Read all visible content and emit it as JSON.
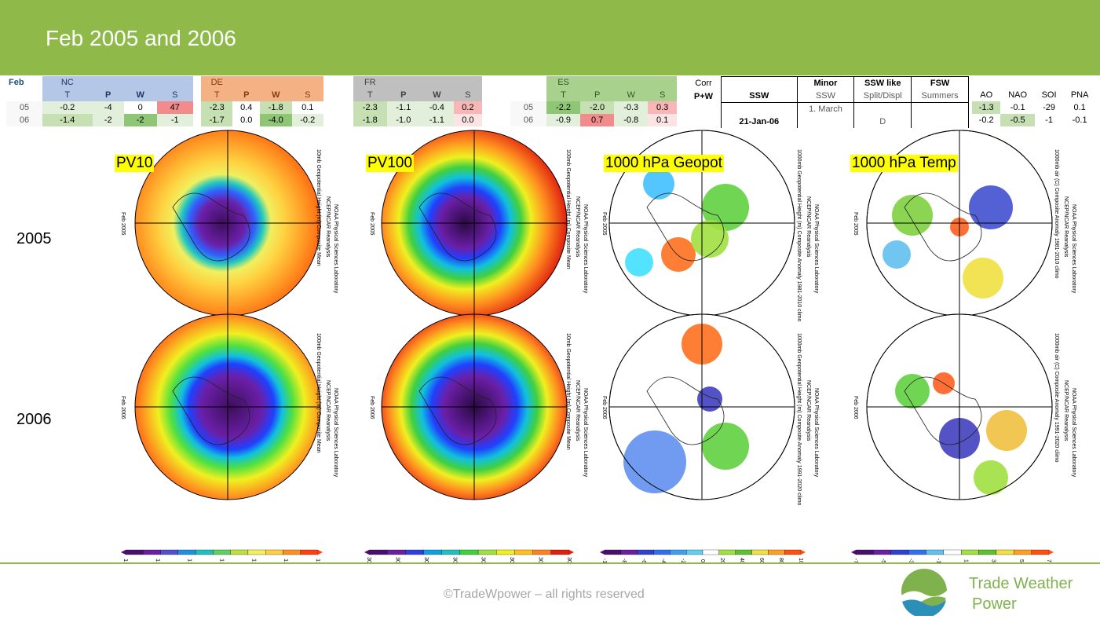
{
  "title": "Feb 2005 and 2006",
  "footer": {
    "copyright": "©TradeWpower – all rights reserved",
    "brand_line1": "Trade Weather",
    "brand_line2": "Power"
  },
  "colors": {
    "header": "#8fba4a",
    "brand": "#7fb24d"
  },
  "table": {
    "feb_label": "Feb",
    "rows": [
      "05",
      "06"
    ],
    "regions": [
      {
        "name": "NC",
        "cols": [
          "T",
          "P",
          "W",
          "S"
        ],
        "r05": [
          "-0.2",
          "-4",
          "0",
          "47"
        ],
        "r06": [
          "-1.4",
          "-2",
          "-2",
          "-1"
        ]
      },
      {
        "name": "DE",
        "cols": [
          "T",
          "P",
          "W",
          "S"
        ],
        "r05": [
          "-2.3",
          "0.4",
          "-1.8",
          "0.1"
        ],
        "r06": [
          "-1.7",
          "0.0",
          "-4.0",
          "-0.2"
        ]
      },
      {
        "name": "FR",
        "cols": [
          "T",
          "P",
          "W",
          "S"
        ],
        "r05": [
          "-2.3",
          "-1.1",
          "-0.4",
          "0.2"
        ],
        "r06": [
          "-1.8",
          "-1.0",
          "-1.1",
          "0.0"
        ]
      },
      {
        "name": "ES",
        "cols": [
          "T",
          "P",
          "W",
          "S"
        ],
        "r05": [
          "-2.2",
          "-2.0",
          "-0.3",
          "0.3"
        ],
        "r06": [
          "-0.9",
          "0.7",
          "-0.8",
          "0.1"
        ]
      }
    ],
    "corr": {
      "line1": "Corr",
      "line2": "P+W"
    },
    "ssw": {
      "headers_top": [
        "",
        "Minor",
        "SSW like",
        "FSW"
      ],
      "headers_bottom": [
        "SSW",
        "SSW",
        "Split/Displ",
        "Summers"
      ],
      "r05": [
        "",
        "1. March",
        "",
        ""
      ],
      "r06": [
        "21-Jan-06",
        "",
        "D",
        ""
      ]
    },
    "indices": {
      "cols": [
        "AO",
        "NAO",
        "SOI",
        "PNA"
      ],
      "r05": [
        "-1.3",
        "-0.1",
        "-29",
        "0.1"
      ],
      "r06": [
        "-0.2",
        "-0.5",
        "-1",
        "-0.1"
      ]
    }
  },
  "years": [
    "2005",
    "2006"
  ],
  "panels": [
    {
      "tag": "PV10",
      "side_label": "10mb Geopotential Height (m) Composite Mean",
      "side_label2": "NCEP/NCAR Reanalysis",
      "side_label3": "NOAA Physical Sciences Laboratory",
      "feb05": "Feb 2005",
      "feb06": "Feb 2006",
      "side_label_06": "100mb Geopotential Height (m) Composite Mean"
    },
    {
      "tag": "PV100",
      "side_label": "100mb Geopotential Height (m) Composite Mean",
      "side_label2": "NCEP/NCAR Reanalysis",
      "side_label3": "NOAA Physical Sciences Laboratory",
      "feb05": "Feb 2005",
      "feb06": "Feb 2006",
      "side_label_06": "10mb Geopotential Height (m) Composite Mean"
    },
    {
      "tag": "1000 hPa Geopot",
      "side_label": "1000mb Geopotential Height (m) Composite Anomaly 1981-2010 climo",
      "side_label2": "NCEP/NCAR Reanalysis",
      "side_label3": "NOAA Physical Sciences Laboratory",
      "feb05": "Feb 2005",
      "feb06": "Feb 2006",
      "side_label_06": "1000mb Geopotential Height (m) Composite Anomaly 1991-2020 climo"
    },
    {
      "tag": "1000 hPa Temp",
      "side_label": "1000mb air (C) Composite Anomaly 1981-2010 climo",
      "side_label2": "NCEP/NCAR Reanalysis",
      "side_label3": "NOAA Physical Sciences Laboratory",
      "feb05": "Feb 2005",
      "feb06": "Feb 2006",
      "side_label_06": "1000mb air (C) Composite Anomaly 1991-2020 climo"
    }
  ],
  "colorbars": [
    {
      "ticks": [
        "1:",
        "1:",
        "1:",
        "1:",
        "1:",
        "1:",
        "1:"
      ]
    },
    {
      "ticks": [
        "30:",
        "30:",
        "30:",
        "30:",
        "30:",
        "30:",
        "30:",
        "30:"
      ]
    },
    {
      "ticks": [
        "-1",
        "-8",
        "-6",
        "-4",
        "-2",
        "0",
        "20",
        "40",
        "60",
        "80",
        "10"
      ]
    },
    {
      "ticks": [
        "-7",
        "-5",
        "-3",
        "-1",
        "1",
        "3",
        "5",
        "7"
      ]
    }
  ]
}
